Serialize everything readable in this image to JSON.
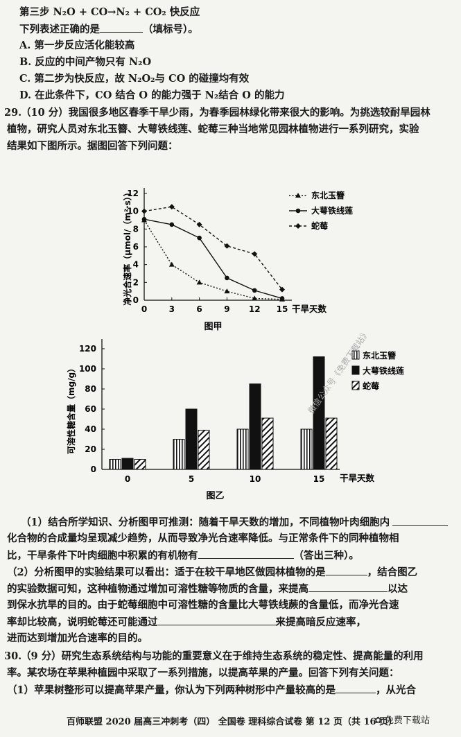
{
  "top": {
    "step3": "第三步    N₂O + CO→N₂ + CO₂            快反应",
    "question": "下列表述正确的是",
    "question_tail": "（填标号）。",
    "options": [
      "A. 第一步反应活化能较高",
      "B. 反应的中间产物只有 N₂O",
      "C. 第二步为快反应，故 N₂O₂与 CO 的碰撞均有效",
      "D. 在此条件下，CO 结合 O 的能力强于 N₂结合 O 的能力"
    ]
  },
  "q29": {
    "number": "29.",
    "intro": [
      "（10 分）我国很多地区春季干旱少雨，为春季园林绿化带来很大的影响。为挑选较耐旱园林",
      "植物，研究人员对东北玉簪、大萼铁线莲、蛇莓三种当地常见园林植物进行一系列研究，实验",
      "结果如下图所示。据图回答下列问题："
    ],
    "p1": [
      "（1）结合所学知识、分析图甲可推测：随着干旱天数的增加，不同植物叶肉细胞内",
      "化合物的合成量均呈现减少趋势，从而导致净光合速率降低。与正常条件下的同种植物相",
      "比，干旱条件下叶肉细胞中积累的有机物有",
      "（答出三种）。"
    ],
    "p2": [
      "（2）分析图甲的实验结果可以看出：适于在较干旱地区做园林植物的是",
      "，结合图乙",
      "的实验数据可知，这种植物通过增加可溶性糖等物质的含量，来提高",
      "以达",
      "到保水抗旱的目的。由于蛇莓细胞中可溶性糖的含量比大萼铁线蕨的含量低，而净光合速",
      "率却比较高，说明蛇莓还可能通过",
      "来提高暗反应速率，",
      "进而达到增加光合速率的目的。"
    ]
  },
  "q30": {
    "number": "30.",
    "lines": [
      "（9 分）研究生态系统结构与功能的重要意义在于维持生态系统的稳定性、提高能量的利用",
      "率。某农场在苹果种植园中采取了一系列措施，以提高苹果的产量。回答下列有关问题：",
      "（1）苹果树整形可以提高苹果产量，你认为下列两种树形中产量较高的是",
      "，从光合"
    ]
  },
  "footer": "百师联盟 2020 届高三冲刺考（四）  全国卷  理科综合试卷  第 12 页（共 16 页）",
  "logo": "免费下载站",
  "watermark": "微信公众号《免费下载站》",
  "chart_data": [
    {
      "type": "line",
      "title": "图甲",
      "xlabel": "干旱天数",
      "ylabel": "净光合速率（μmol/（m²·s））",
      "x": [
        0,
        3,
        6,
        9,
        12,
        15
      ],
      "xlim": [
        0,
        15
      ],
      "ylim": [
        0,
        12
      ],
      "yticks": [
        0,
        2,
        4,
        6,
        8,
        10,
        12
      ],
      "legend_position": "top-right",
      "series": [
        {
          "name": "东北玉簪",
          "values": [
            9.0,
            4.0,
            2.0,
            1.0,
            0.2,
            0.1
          ],
          "marker": "triangle",
          "style": "dotted"
        },
        {
          "name": "大萼铁线莲",
          "values": [
            9.1,
            8.5,
            7.0,
            2.5,
            1.1,
            0.2
          ],
          "marker": "circle",
          "style": "solid"
        },
        {
          "name": "蛇莓",
          "values": [
            10.0,
            10.5,
            8.5,
            6.1,
            5.2,
            1.2
          ],
          "marker": "diamond",
          "style": "dashed"
        }
      ]
    },
    {
      "type": "bar",
      "title": "图乙",
      "xlabel": "干旱天数",
      "ylabel": "可溶性糖含量（mg/g）",
      "categories": [
        "0",
        "5",
        "10",
        "15"
      ],
      "ylim": [
        0,
        120
      ],
      "yticks": [
        0,
        20,
        40,
        60,
        80,
        100,
        120
      ],
      "legend_position": "top-right",
      "series": [
        {
          "name": "东北玉簪",
          "values": [
            10,
            30,
            40,
            40
          ],
          "pattern": "vertical-stripes"
        },
        {
          "name": "大萼铁线莲",
          "values": [
            11,
            60,
            85,
            112
          ],
          "pattern": "solid"
        },
        {
          "name": "蛇莓",
          "values": [
            10,
            39,
            51,
            51
          ],
          "pattern": "diagonal-stripes"
        }
      ]
    }
  ]
}
